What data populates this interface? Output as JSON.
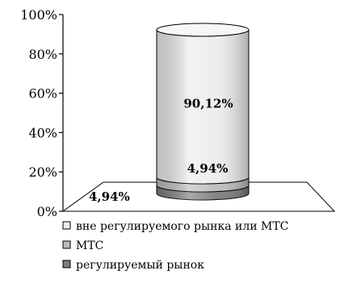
{
  "chart_data": {
    "type": "bar",
    "style": "3d-stacked-cylinder",
    "categories": [
      ""
    ],
    "series": [
      {
        "name": "регулируемый рынок",
        "values": [
          4.94
        ],
        "color": "#7d7d7d",
        "label": "4,94%"
      },
      {
        "name": "МТС",
        "values": [
          4.94
        ],
        "color": "#bdbdbd",
        "label": "4,94%"
      },
      {
        "name": "вне регулируемого рынка или МТС",
        "values": [
          90.12
        ],
        "color": "#ececec",
        "label": "90,12%"
      }
    ],
    "ylim": [
      0,
      100
    ],
    "yticks": [
      0,
      20,
      40,
      60,
      80,
      100
    ],
    "ytick_labels": [
      "0%",
      "20%",
      "40%",
      "60%",
      "80%",
      "100%"
    ],
    "legend_position": "bottom-left",
    "legend_order": [
      2,
      1,
      0
    ],
    "grid": false,
    "title": "",
    "xlabel": "",
    "ylabel": ""
  }
}
